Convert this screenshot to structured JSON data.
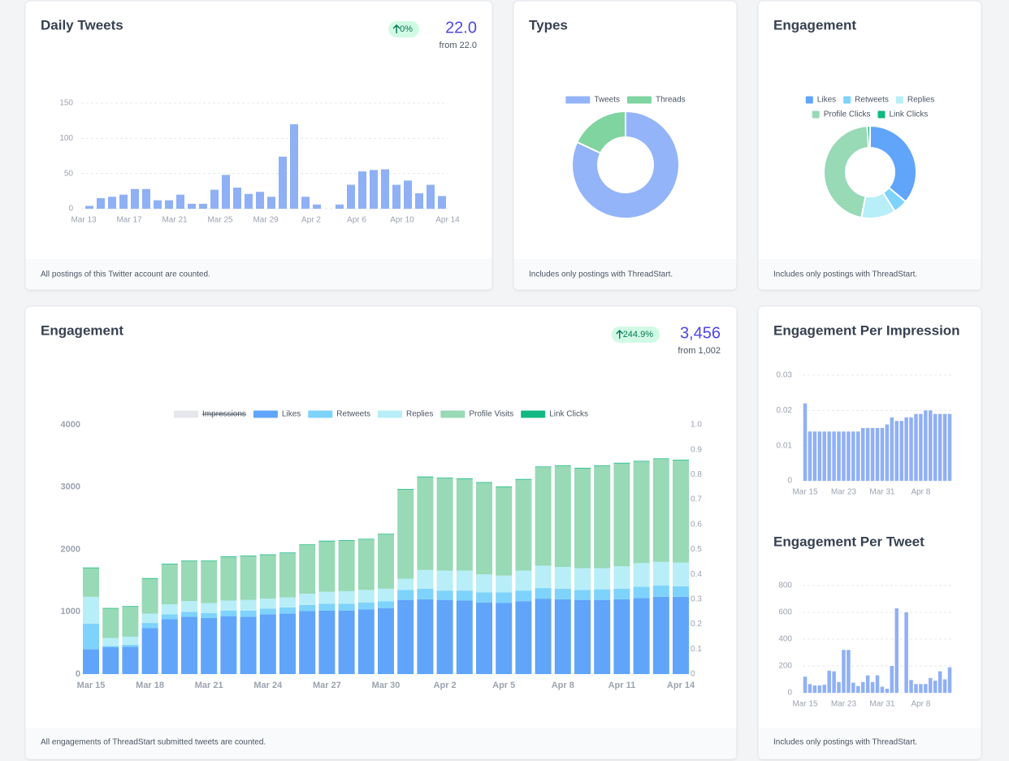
{
  "chart_data": [
    {
      "type": "bar",
      "title": "Daily Tweets",
      "change": "0%",
      "stat": "22.0",
      "stat_note": "from 22.0",
      "footnote": "All postings of this Twitter account are counted.",
      "categories": [
        "Mar 13",
        null,
        null,
        null,
        "Mar 17",
        null,
        null,
        null,
        "Mar 21",
        null,
        null,
        null,
        "Mar 25",
        null,
        null,
        null,
        "Mar 29",
        null,
        null,
        null,
        "Apr 2",
        null,
        null,
        null,
        "Apr 6",
        null,
        null,
        null,
        "Apr 10",
        null,
        null,
        null,
        "Apr 14"
      ],
      "values": [
        4,
        15,
        17,
        20,
        28,
        28,
        12,
        12,
        20,
        7,
        7,
        27,
        48,
        30,
        21,
        24,
        17,
        74,
        120,
        17,
        6,
        0,
        6,
        34,
        53,
        55,
        56,
        34,
        40,
        22,
        34,
        18,
        0
      ],
      "color": "#8fb0f5",
      "ylim": [
        0,
        150
      ],
      "yticks": [
        0,
        50,
        100,
        150
      ],
      "grid": true
    },
    {
      "type": "donut",
      "title": "Types",
      "footnote": "Includes only postings with ThreadStart.",
      "categories": [
        "Tweets",
        "Threads"
      ],
      "values": [
        82,
        18
      ],
      "colors": [
        "#93b4f8",
        "#7fd4a0"
      ]
    },
    {
      "type": "donut",
      "title": "Engagement",
      "footnote": "Includes only postings with ThreadStart.",
      "categories": [
        "Likes",
        "Retweets",
        "Replies",
        "Profile Clicks",
        "Link Clicks"
      ],
      "values": [
        36,
        5,
        12,
        46,
        1
      ],
      "colors": [
        "#60a5fa",
        "#7dd3fc",
        "#b8eef8",
        "#98d9b6",
        "#10b981"
      ]
    },
    {
      "type": "stacked-bar",
      "title": "Engagement",
      "change": "244.9%",
      "stat": "3,456",
      "stat_note": "from 1,002",
      "footnote": "All engagements of ThreadStart submitted tweets are counted.",
      "categories": [
        "Mar 15",
        null,
        null,
        "Mar 18",
        null,
        null,
        "Mar 21",
        null,
        null,
        "Mar 24",
        null,
        null,
        "Mar 27",
        null,
        null,
        "Mar 30",
        null,
        null,
        "Apr 2",
        null,
        null,
        "Apr 5",
        null,
        null,
        "Apr 8",
        null,
        null,
        "Apr 11",
        null,
        null,
        "Apr 14"
      ],
      "series": [
        {
          "name": "Impressions",
          "color": "#e5e7eb",
          "axis": "y2",
          "hidden": true
        },
        {
          "name": "Likes",
          "color": "#60a5fa",
          "values": [
            400,
            430,
            440,
            740,
            880,
            920,
            900,
            930,
            920,
            960,
            970,
            1010,
            1020,
            1020,
            1040,
            1060,
            1190,
            1200,
            1190,
            1180,
            1150,
            1140,
            1170,
            1210,
            1200,
            1190,
            1190,
            1200,
            1220,
            1240,
            1240
          ]
        },
        {
          "name": "Retweets",
          "color": "#7dd3fc",
          "values": [
            410,
            20,
            30,
            80,
            80,
            80,
            80,
            90,
            100,
            90,
            100,
            100,
            110,
            110,
            110,
            110,
            160,
            170,
            150,
            160,
            160,
            170,
            170,
            170,
            170,
            160,
            170,
            170,
            180,
            180,
            170
          ]
        },
        {
          "name": "Replies",
          "color": "#b8eef8",
          "values": [
            430,
            130,
            130,
            150,
            160,
            170,
            160,
            160,
            170,
            160,
            160,
            180,
            190,
            200,
            200,
            200,
            180,
            300,
            320,
            320,
            290,
            270,
            320,
            360,
            350,
            350,
            340,
            360,
            380,
            380,
            380
          ]
        },
        {
          "name": "Profile Visits",
          "color": "#98d9b6",
          "values": [
            460,
            470,
            480,
            560,
            640,
            640,
            670,
            700,
            700,
            700,
            710,
            780,
            810,
            810,
            810,
            870,
            1430,
            1490,
            1480,
            1470,
            1470,
            1420,
            1460,
            1580,
            1620,
            1600,
            1640,
            1650,
            1630,
            1650,
            1640
          ]
        },
        {
          "name": "Link Clicks",
          "color": "#10b981",
          "values": [
            10,
            10,
            10,
            10,
            10,
            10,
            10,
            10,
            10,
            10,
            10,
            10,
            10,
            10,
            10,
            10,
            10,
            10,
            10,
            10,
            10,
            10,
            10,
            10,
            10,
            10,
            10,
            10,
            10,
            10,
            10
          ]
        }
      ],
      "ylim": [
        0,
        4000
      ],
      "yticks": [
        0,
        1000,
        2000,
        3000,
        4000
      ],
      "y2lim": [
        0,
        1
      ],
      "y2ticks": [
        0,
        0.1,
        0.2,
        0.3,
        0.4,
        0.5,
        0.6,
        0.7,
        0.8,
        0.9,
        {
          "value": 1,
          "label": "1.0"
        }
      ],
      "grid": false
    },
    {
      "type": "bar",
      "title": "Engagement Per Impression",
      "categories": [
        "Mar 15",
        null,
        null,
        null,
        null,
        null,
        null,
        null,
        "Mar 23",
        null,
        null,
        null,
        null,
        null,
        null,
        null,
        "Mar 31",
        null,
        null,
        null,
        null,
        null,
        null,
        null,
        "Apr 8",
        null,
        null,
        null,
        null,
        null,
        null
      ],
      "values": [
        0.022,
        0.014,
        0.014,
        0.014,
        0.014,
        0.014,
        0.014,
        0.014,
        0.014,
        0.014,
        0.014,
        0.014,
        0.015,
        0.015,
        0.015,
        0.015,
        0.015,
        0.016,
        0.018,
        0.017,
        0.017,
        0.018,
        0.018,
        0.019,
        0.019,
        0.02,
        0.02,
        0.019,
        0.019,
        0.019,
        0.019
      ],
      "color": "#8fb0f5",
      "ylim": [
        0,
        0.03
      ],
      "yticks": [
        0,
        0.01,
        0.02,
        0.03
      ],
      "grid": true
    },
    {
      "type": "bar",
      "title": "Engagement Per Tweet",
      "footnote": "Includes only postings with ThreadStart.",
      "categories": [
        "Mar 15",
        null,
        null,
        null,
        null,
        null,
        null,
        null,
        "Mar 23",
        null,
        null,
        null,
        null,
        null,
        null,
        null,
        "Mar 31",
        null,
        null,
        null,
        null,
        null,
        null,
        null,
        "Apr 8",
        null,
        null,
        null,
        null,
        null,
        null
      ],
      "values": [
        120,
        65,
        55,
        55,
        60,
        165,
        160,
        80,
        320,
        320,
        75,
        50,
        80,
        130,
        80,
        130,
        45,
        30,
        200,
        630,
        0,
        600,
        95,
        65,
        65,
        65,
        110,
        90,
        160,
        100,
        190
      ],
      "color": "#8fb0f5",
      "ylim": [
        0,
        800
      ],
      "yticks": [
        0,
        200,
        400,
        600,
        800
      ],
      "grid": true
    }
  ]
}
